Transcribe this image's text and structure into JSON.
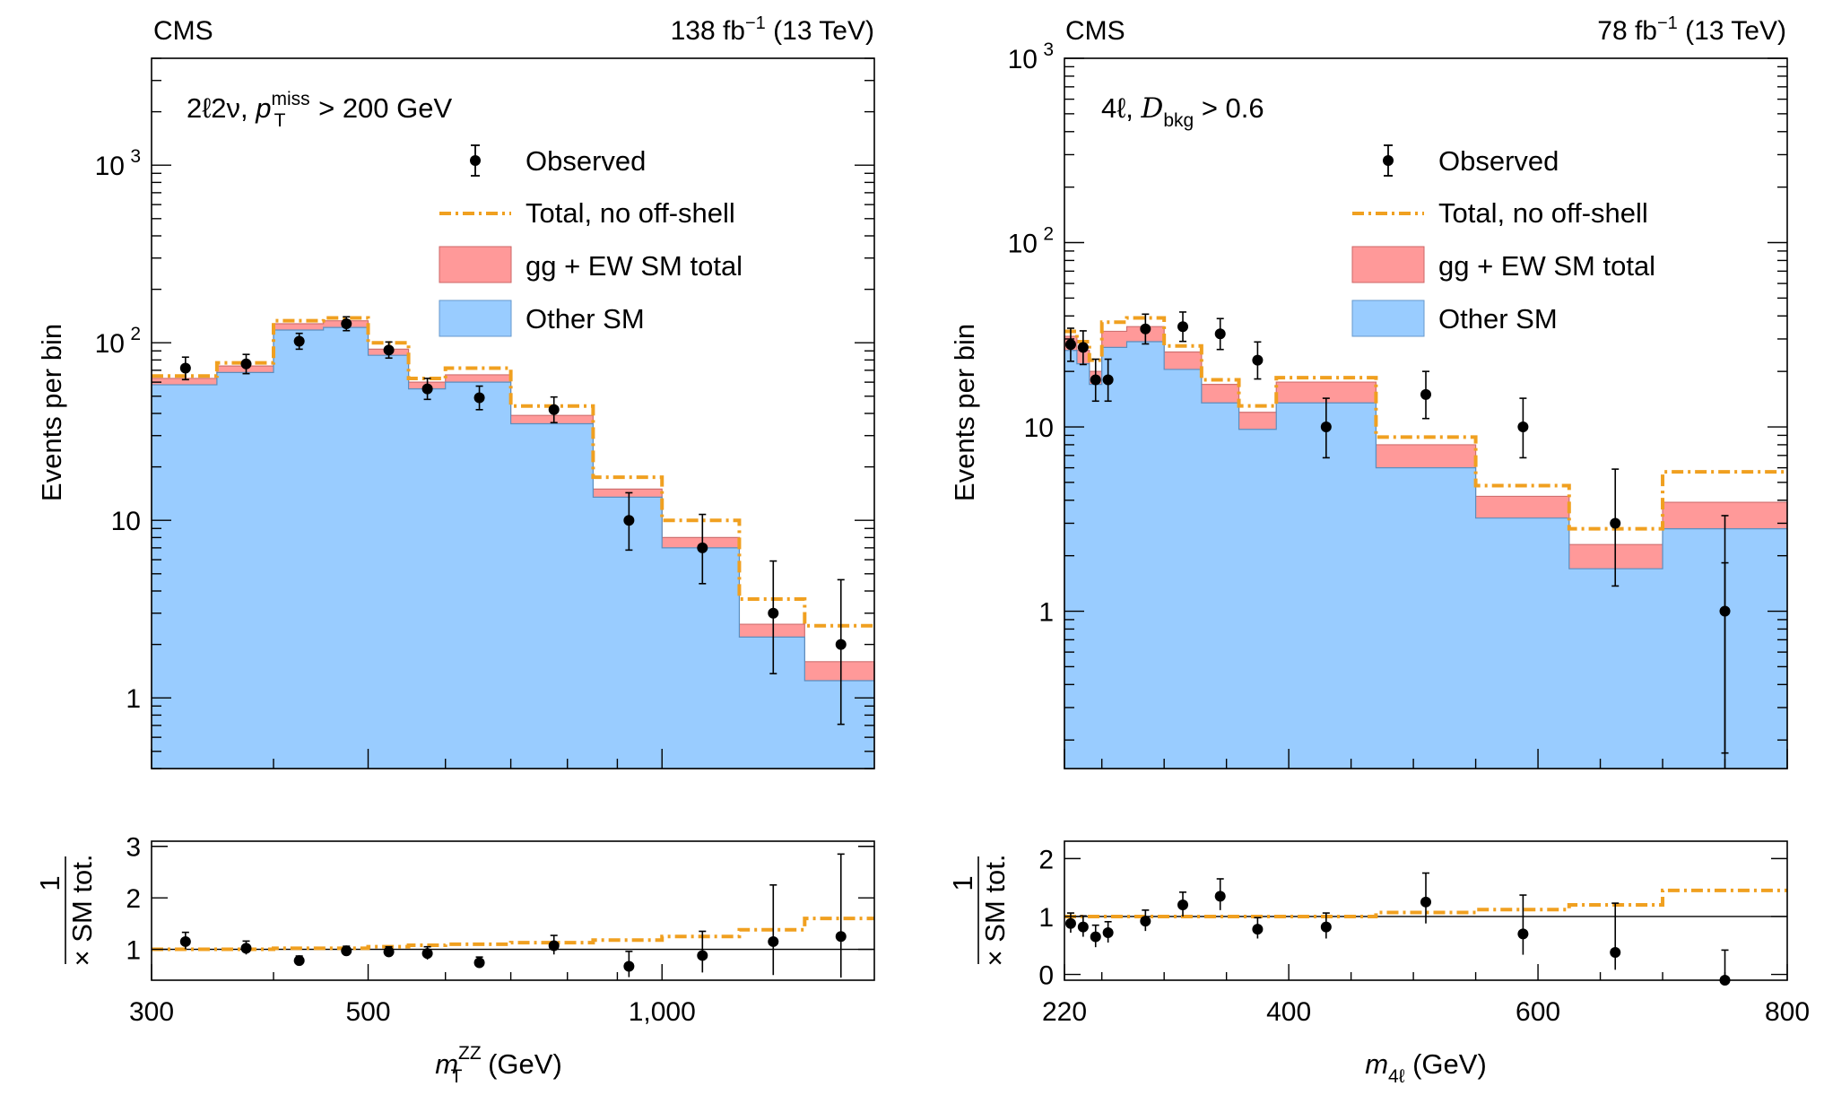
{
  "colors": {
    "other_sm": "#99ccff",
    "gg_ew": "#ff9999",
    "no_offshell": "#f0a020",
    "observed": "#000000",
    "frame": "#000000"
  },
  "legend": {
    "observed": "Observed",
    "no_offshell": "Total, no off-shell",
    "gg_ew": "gg + EW SM total",
    "other_sm": "Other SM"
  },
  "chart_data": [
    {
      "type": "step-area",
      "experiment": "CMS",
      "lumi_base": "138 fb",
      "lumi_exp": "−1",
      "energy": "(13 TeV)",
      "category": {
        "pre": "2ℓ2ν, ",
        "p": "p",
        "sup": "miss",
        "sub": "T",
        "post": " > 200 GeV"
      },
      "ylabel": "Events per bin",
      "ratio_ylabel_top": "1",
      "ratio_ylabel_main": "× SM tot.",
      "xlabel": {
        "m": "m",
        "sup": "ZZ",
        "sub": "T",
        "post": " (GeV)"
      },
      "xscale": "log",
      "yscale": "log",
      "xlim": [
        300,
        1650
      ],
      "ylim": [
        0.4,
        4000
      ],
      "xticks": [
        {
          "v": 300,
          "label": "300"
        },
        {
          "v": 500,
          "label": "500"
        },
        {
          "v": 1000,
          "label": "1,000"
        }
      ],
      "xminor": [
        400,
        600,
        700,
        800,
        900
      ],
      "yticks": [
        {
          "v": 1,
          "label": "1"
        },
        {
          "v": 10,
          "label": "10"
        },
        {
          "v": 100,
          "label": "10",
          "exp": "2"
        },
        {
          "v": 1000,
          "label": "10",
          "exp": "3"
        }
      ],
      "bin_edges": [
        300,
        350,
        400,
        450,
        500,
        550,
        600,
        700,
        850,
        1000,
        1200,
        1400,
        1650
      ],
      "other_sm": [
        58,
        68,
        118,
        122,
        85,
        55,
        60,
        35,
        13.5,
        7,
        2.2,
        1.25
      ],
      "sm_total": [
        63,
        74,
        128,
        133,
        92,
        60,
        66,
        39,
        15,
        8,
        2.6,
        1.6
      ],
      "no_offshell": [
        65,
        77,
        133,
        138,
        100,
        63,
        72,
        44,
        17.5,
        10,
        3.6,
        2.55
      ],
      "observed": {
        "x": [
          325,
          375,
          425,
          475,
          525,
          575,
          650,
          775,
          925,
          1100,
          1300,
          1525
        ],
        "y": [
          72,
          76,
          102,
          128,
          91,
          55,
          49,
          42,
          10,
          7,
          3,
          2
        ],
        "err_lo": [
          10,
          9,
          10,
          11,
          9,
          7,
          7,
          6.5,
          3.2,
          2.6,
          1.63,
          1.29
        ],
        "err_hi": [
          11,
          10,
          11,
          12,
          10,
          8,
          8,
          7.5,
          4.3,
          3.8,
          2.9,
          2.63
        ]
      },
      "ratio": {
        "ylim": [
          0.4,
          3.1
        ],
        "yticks": [
          {
            "v": 1,
            "label": "1"
          },
          {
            "v": 2,
            "label": "2"
          },
          {
            "v": 3,
            "label": "3"
          }
        ],
        "no_offshell": [
          1.0,
          1.0,
          1.02,
          1.02,
          1.05,
          1.08,
          1.1,
          1.13,
          1.18,
          1.25,
          1.38,
          1.6
        ],
        "obs_y": [
          1.15,
          1.02,
          0.78,
          0.97,
          0.95,
          0.92,
          0.74,
          1.07,
          0.67,
          0.88,
          1.15,
          1.25
        ],
        "obs_lo": [
          0.15,
          0.12,
          0.08,
          0.09,
          0.1,
          0.12,
          0.1,
          0.17,
          0.21,
          0.33,
          0.65,
          0.8
        ],
        "obs_hi": [
          0.18,
          0.14,
          0.09,
          0.09,
          0.1,
          0.13,
          0.11,
          0.2,
          0.29,
          0.47,
          1.1,
          1.6
        ]
      }
    },
    {
      "type": "step-area",
      "experiment": "CMS",
      "lumi_base": "78 fb",
      "lumi_exp": "−1",
      "energy": "(13 TeV)",
      "category": {
        "pre": "4ℓ, ",
        "D": "D",
        "sub": "bkg",
        "post": " > 0.6"
      },
      "ylabel": "Events per bin",
      "ratio_ylabel_top": "1",
      "ratio_ylabel_main": "× SM tot.",
      "xlabel": {
        "m": "m",
        "sub": "4ℓ",
        "post": " (GeV)"
      },
      "xscale": "linear",
      "yscale": "log",
      "xlim": [
        220,
        800
      ],
      "ylim": [
        0.14,
        1000
      ],
      "xticks": [
        {
          "v": 220,
          "label": "220"
        },
        {
          "v": 400,
          "label": "400"
        },
        {
          "v": 600,
          "label": "600"
        },
        {
          "v": 800,
          "label": "800"
        }
      ],
      "xminor": [
        250,
        300,
        350,
        450,
        500,
        550,
        650,
        700,
        750
      ],
      "yticks": [
        {
          "v": 1,
          "label": "1"
        },
        {
          "v": 10,
          "label": "10"
        },
        {
          "v": 100,
          "label": "10",
          "exp": "2"
        },
        {
          "v": 1000,
          "label": "10",
          "exp": "3"
        }
      ],
      "bin_edges": [
        220,
        230,
        240,
        250,
        270,
        300,
        330,
        360,
        390,
        470,
        550,
        625,
        700,
        800
      ],
      "other_sm": [
        26,
        22,
        17,
        27,
        29,
        20.5,
        13.5,
        9.7,
        13.5,
        6,
        3.2,
        1.7,
        2.8
      ],
      "sm_total": [
        31,
        26,
        20,
        33,
        35,
        25.5,
        17,
        12,
        17.5,
        8,
        4.2,
        2.3,
        3.9
      ],
      "no_offshell": [
        33,
        29,
        23,
        37,
        39,
        27.5,
        18,
        13,
        18.5,
        8.8,
        4.8,
        2.8,
        5.7
      ],
      "observed": {
        "x": [
          225,
          235,
          245,
          255,
          285,
          315,
          345,
          375,
          430,
          510,
          588,
          662,
          750
        ],
        "y": [
          28,
          27,
          18,
          18,
          34,
          35,
          32,
          23,
          10,
          15,
          10,
          3,
          1
        ],
        "err_lo": [
          5.3,
          5.2,
          4.2,
          4.2,
          5.8,
          5.9,
          5.7,
          4.8,
          3.2,
          3.9,
          3.2,
          1.63,
          0.83
        ],
        "err_hi": [
          6.3,
          6.2,
          5.3,
          5.3,
          6.9,
          7.0,
          6.7,
          5.9,
          4.3,
          5.0,
          4.3,
          2.9,
          2.3
        ]
      },
      "obs_last_upper": 1.83,
      "ratio": {
        "ylim": [
          -0.1,
          2.3
        ],
        "yticks": [
          {
            "v": 0,
            "label": "0"
          },
          {
            "v": 1,
            "label": "1"
          },
          {
            "v": 2,
            "label": "2"
          }
        ],
        "no_offshell": [
          1.0,
          1.0,
          1.0,
          1.0,
          1.0,
          1.0,
          1.0,
          1.0,
          1.0,
          1.07,
          1.12,
          1.2,
          1.45
        ],
        "obs_y": [
          0.88,
          0.82,
          0.65,
          0.72,
          0.92,
          1.2,
          1.35,
          0.78,
          0.82,
          1.25,
          0.7,
          0.38,
          -0.13
        ],
        "obs_lo": [
          0.16,
          0.17,
          0.18,
          0.17,
          0.17,
          0.2,
          0.24,
          0.16,
          0.2,
          0.37,
          0.36,
          0.3,
          0
        ],
        "obs_hi": [
          0.18,
          0.19,
          0.2,
          0.19,
          0.19,
          0.22,
          0.3,
          0.2,
          0.24,
          0.5,
          0.67,
          0.85,
          0.55
        ]
      }
    }
  ]
}
